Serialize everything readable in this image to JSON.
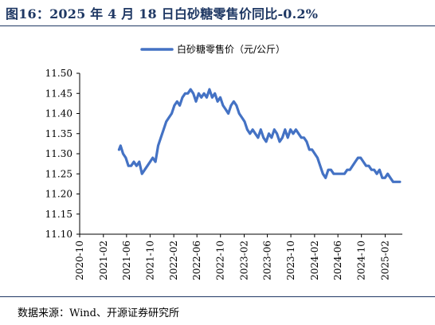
{
  "figure": {
    "title": "图16：2025 年 4 月 18 日白砂糖零售价同比-0.2%",
    "source": "数据来源：Wind、开源证券研究所",
    "accent_color": "#1f3864"
  },
  "chart_data": {
    "type": "line",
    "title": "",
    "xlabel": "",
    "ylabel": "",
    "ylim": [
      11.1,
      11.5
    ],
    "yticks": [
      "11.10",
      "11.15",
      "11.20",
      "11.25",
      "11.30",
      "11.35",
      "11.40",
      "11.45",
      "11.50"
    ],
    "xticks": [
      "2020-10",
      "2021-02",
      "2021-06",
      "2021-10",
      "2022-02",
      "2022-06",
      "2022-10",
      "2023-02",
      "2023-06",
      "2023-10",
      "2024-02",
      "2024-06",
      "2024-10",
      "2025-02"
    ],
    "xlim": [
      "2020-10-01",
      "2025-05-01"
    ],
    "grid": false,
    "legend_position": "top-center",
    "series": [
      {
        "name": "白砂糖零售价（元/公斤）",
        "color": "#4472c4",
        "points": [
          [
            "2021-04-23",
            11.31
          ],
          [
            "2021-05-01",
            11.32
          ],
          [
            "2021-05-14",
            11.3
          ],
          [
            "2021-05-28",
            11.29
          ],
          [
            "2021-06-11",
            11.27
          ],
          [
            "2021-06-25",
            11.27
          ],
          [
            "2021-07-09",
            11.28
          ],
          [
            "2021-07-23",
            11.27
          ],
          [
            "2021-08-06",
            11.28
          ],
          [
            "2021-08-20",
            11.25
          ],
          [
            "2021-09-03",
            11.26
          ],
          [
            "2021-09-17",
            11.27
          ],
          [
            "2021-10-01",
            11.28
          ],
          [
            "2021-10-15",
            11.29
          ],
          [
            "2021-10-29",
            11.28
          ],
          [
            "2021-11-12",
            11.32
          ],
          [
            "2021-11-26",
            11.34
          ],
          [
            "2021-12-10",
            11.36
          ],
          [
            "2021-12-24",
            11.38
          ],
          [
            "2022-01-07",
            11.39
          ],
          [
            "2022-01-21",
            11.4
          ],
          [
            "2022-02-04",
            11.42
          ],
          [
            "2022-02-18",
            11.43
          ],
          [
            "2022-03-04",
            11.42
          ],
          [
            "2022-03-18",
            11.44
          ],
          [
            "2022-04-01",
            11.45
          ],
          [
            "2022-04-15",
            11.45
          ],
          [
            "2022-04-29",
            11.46
          ],
          [
            "2022-05-13",
            11.45
          ],
          [
            "2022-05-27",
            11.43
          ],
          [
            "2022-06-10",
            11.45
          ],
          [
            "2022-06-24",
            11.44
          ],
          [
            "2022-07-08",
            11.45
          ],
          [
            "2022-07-22",
            11.44
          ],
          [
            "2022-08-05",
            11.46
          ],
          [
            "2022-08-19",
            11.44
          ],
          [
            "2022-09-02",
            11.45
          ],
          [
            "2022-09-16",
            11.43
          ],
          [
            "2022-09-30",
            11.44
          ],
          [
            "2022-10-14",
            11.42
          ],
          [
            "2022-10-28",
            11.41
          ],
          [
            "2022-11-11",
            11.4
          ],
          [
            "2022-11-25",
            11.42
          ],
          [
            "2022-12-09",
            11.43
          ],
          [
            "2022-12-23",
            11.42
          ],
          [
            "2023-01-06",
            11.4
          ],
          [
            "2023-01-20",
            11.39
          ],
          [
            "2023-02-03",
            11.38
          ],
          [
            "2023-02-17",
            11.36
          ],
          [
            "2023-03-03",
            11.35
          ],
          [
            "2023-03-17",
            11.36
          ],
          [
            "2023-03-31",
            11.35
          ],
          [
            "2023-04-14",
            11.34
          ],
          [
            "2023-04-28",
            11.36
          ],
          [
            "2023-05-12",
            11.34
          ],
          [
            "2023-05-26",
            11.33
          ],
          [
            "2023-06-09",
            11.35
          ],
          [
            "2023-06-23",
            11.34
          ],
          [
            "2023-07-07",
            11.36
          ],
          [
            "2023-07-21",
            11.35
          ],
          [
            "2023-08-04",
            11.33
          ],
          [
            "2023-08-18",
            11.34
          ],
          [
            "2023-09-01",
            11.36
          ],
          [
            "2023-09-15",
            11.34
          ],
          [
            "2023-09-29",
            11.36
          ],
          [
            "2023-10-13",
            11.35
          ],
          [
            "2023-10-27",
            11.36
          ],
          [
            "2023-11-10",
            11.35
          ],
          [
            "2023-11-24",
            11.34
          ],
          [
            "2023-12-08",
            11.34
          ],
          [
            "2023-12-22",
            11.33
          ],
          [
            "2024-01-05",
            11.31
          ],
          [
            "2024-01-19",
            11.31
          ],
          [
            "2024-02-02",
            11.3
          ],
          [
            "2024-02-16",
            11.29
          ],
          [
            "2024-03-01",
            11.27
          ],
          [
            "2024-03-15",
            11.25
          ],
          [
            "2024-03-29",
            11.24
          ],
          [
            "2024-04-12",
            11.26
          ],
          [
            "2024-04-26",
            11.26
          ],
          [
            "2024-05-10",
            11.25
          ],
          [
            "2024-05-24",
            11.25
          ],
          [
            "2024-06-07",
            11.25
          ],
          [
            "2024-06-21",
            11.25
          ],
          [
            "2024-07-05",
            11.25
          ],
          [
            "2024-07-19",
            11.26
          ],
          [
            "2024-08-02",
            11.26
          ],
          [
            "2024-08-16",
            11.27
          ],
          [
            "2024-08-30",
            11.28
          ],
          [
            "2024-09-13",
            11.29
          ],
          [
            "2024-09-27",
            11.29
          ],
          [
            "2024-10-11",
            11.28
          ],
          [
            "2024-10-25",
            11.27
          ],
          [
            "2024-11-08",
            11.27
          ],
          [
            "2024-11-22",
            11.26
          ],
          [
            "2024-12-06",
            11.26
          ],
          [
            "2024-12-20",
            11.25
          ],
          [
            "2025-01-03",
            11.26
          ],
          [
            "2025-01-17",
            11.24
          ],
          [
            "2025-01-31",
            11.24
          ],
          [
            "2025-02-14",
            11.25
          ],
          [
            "2025-02-28",
            11.24
          ],
          [
            "2025-03-14",
            11.23
          ],
          [
            "2025-03-28",
            11.23
          ],
          [
            "2025-04-11",
            11.23
          ],
          [
            "2025-04-18",
            11.23
          ]
        ]
      }
    ]
  }
}
